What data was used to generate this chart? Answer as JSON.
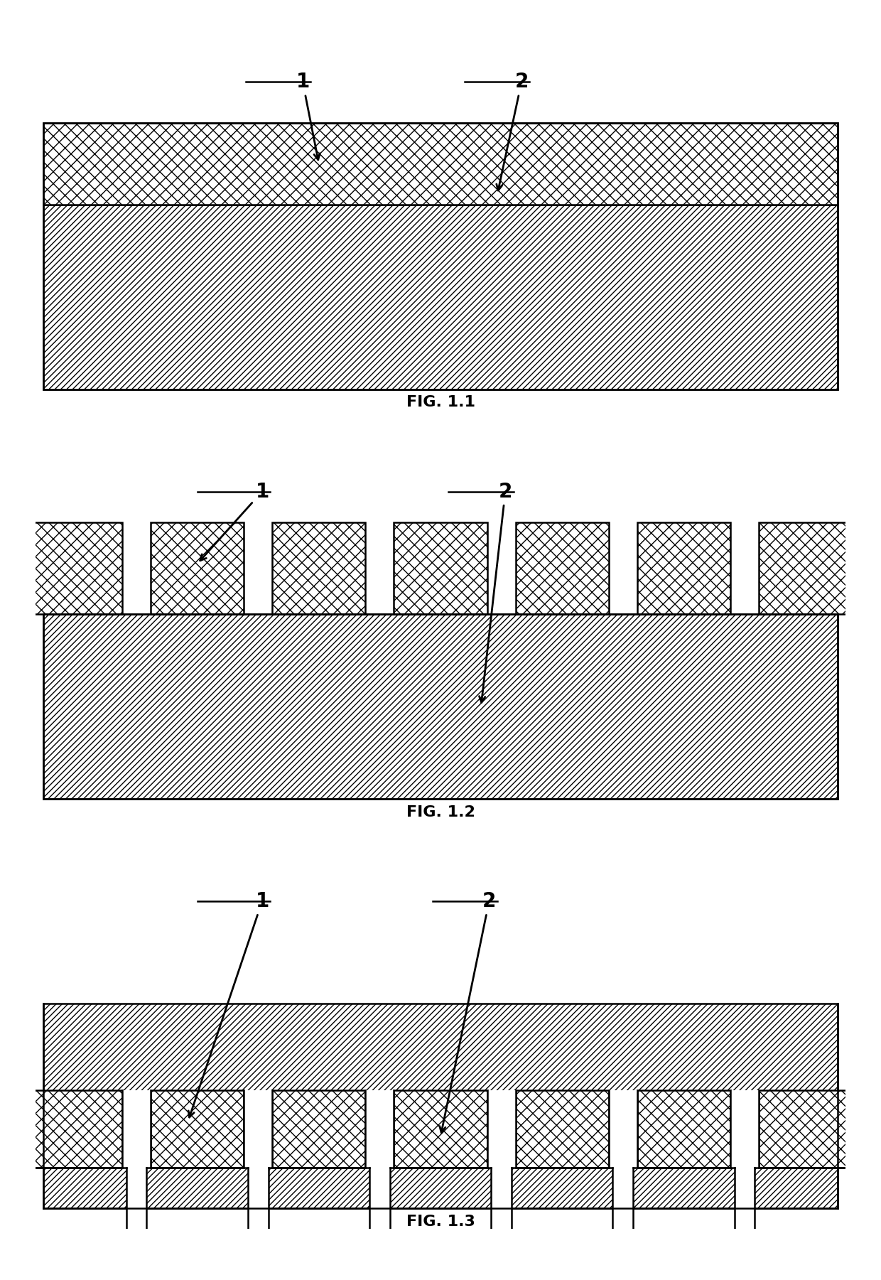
{
  "bg_color": "#ffffff",
  "line_color": "#000000",
  "fig_labels": [
    "FIG. 1.1",
    "FIG. 1.2",
    "FIG. 1.3"
  ],
  "label1": "1",
  "label2": "2",
  "fig_label_fontsize": 16,
  "annotation_fontsize": 20,
  "figsize": [
    12.4,
    18.01
  ],
  "dpi": 100
}
